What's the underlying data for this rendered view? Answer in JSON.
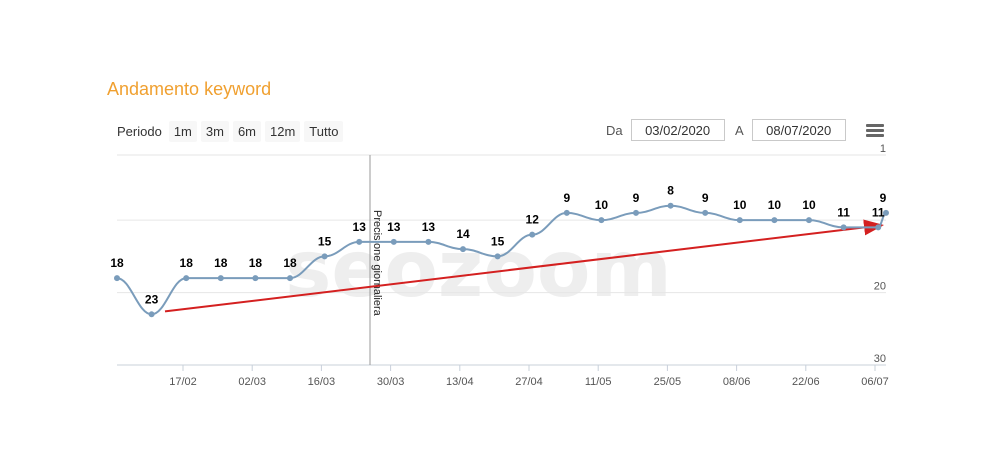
{
  "header": {
    "title": "Andamento keyword"
  },
  "range_selector": {
    "label": "Periodo",
    "buttons": [
      "1m",
      "3m",
      "6m",
      "12m",
      "Tutto"
    ]
  },
  "date_range": {
    "from_label": "Da",
    "from_value": "03/02/2020",
    "to_label": "A",
    "to_value": "08/07/2020"
  },
  "menu": {
    "icon": "hamburger-icon"
  },
  "watermark": "seozoom",
  "colors": {
    "title": "#f0a030",
    "series": "#7a9cbb",
    "trend": "#d42020",
    "grid": "#e6e6e6"
  },
  "chart_data": {
    "type": "line",
    "title": "",
    "y_reversed": true,
    "ylim": [
      1,
      30
    ],
    "y_ticks": [
      1,
      10,
      20,
      30
    ],
    "y_tick_labels": [
      "1",
      "",
      "20",
      "30"
    ],
    "x_ticks": [
      "17/02",
      "02/03",
      "16/03",
      "30/03",
      "13/04",
      "27/04",
      "11/05",
      "25/05",
      "08/06",
      "22/06",
      "06/07"
    ],
    "series": [
      {
        "values": [
          18,
          23,
          18,
          18,
          18,
          18,
          15,
          13,
          13,
          13,
          14,
          15,
          12,
          9,
          10,
          9,
          8,
          9,
          10,
          10,
          10,
          11,
          11,
          9
        ],
        "labels": [
          "18",
          "23",
          "18",
          "18",
          "18",
          "18",
          "15",
          "13",
          "13",
          "13",
          "14",
          "15",
          "12",
          "9",
          "10",
          "9",
          "8",
          "9",
          "10",
          "10",
          "10",
          "11",
          "11",
          "9"
        ]
      }
    ],
    "plot_line": {
      "label": "Precisione giornaliera"
    },
    "trend_line": {
      "from": 22.6,
      "to": 10.7
    }
  }
}
